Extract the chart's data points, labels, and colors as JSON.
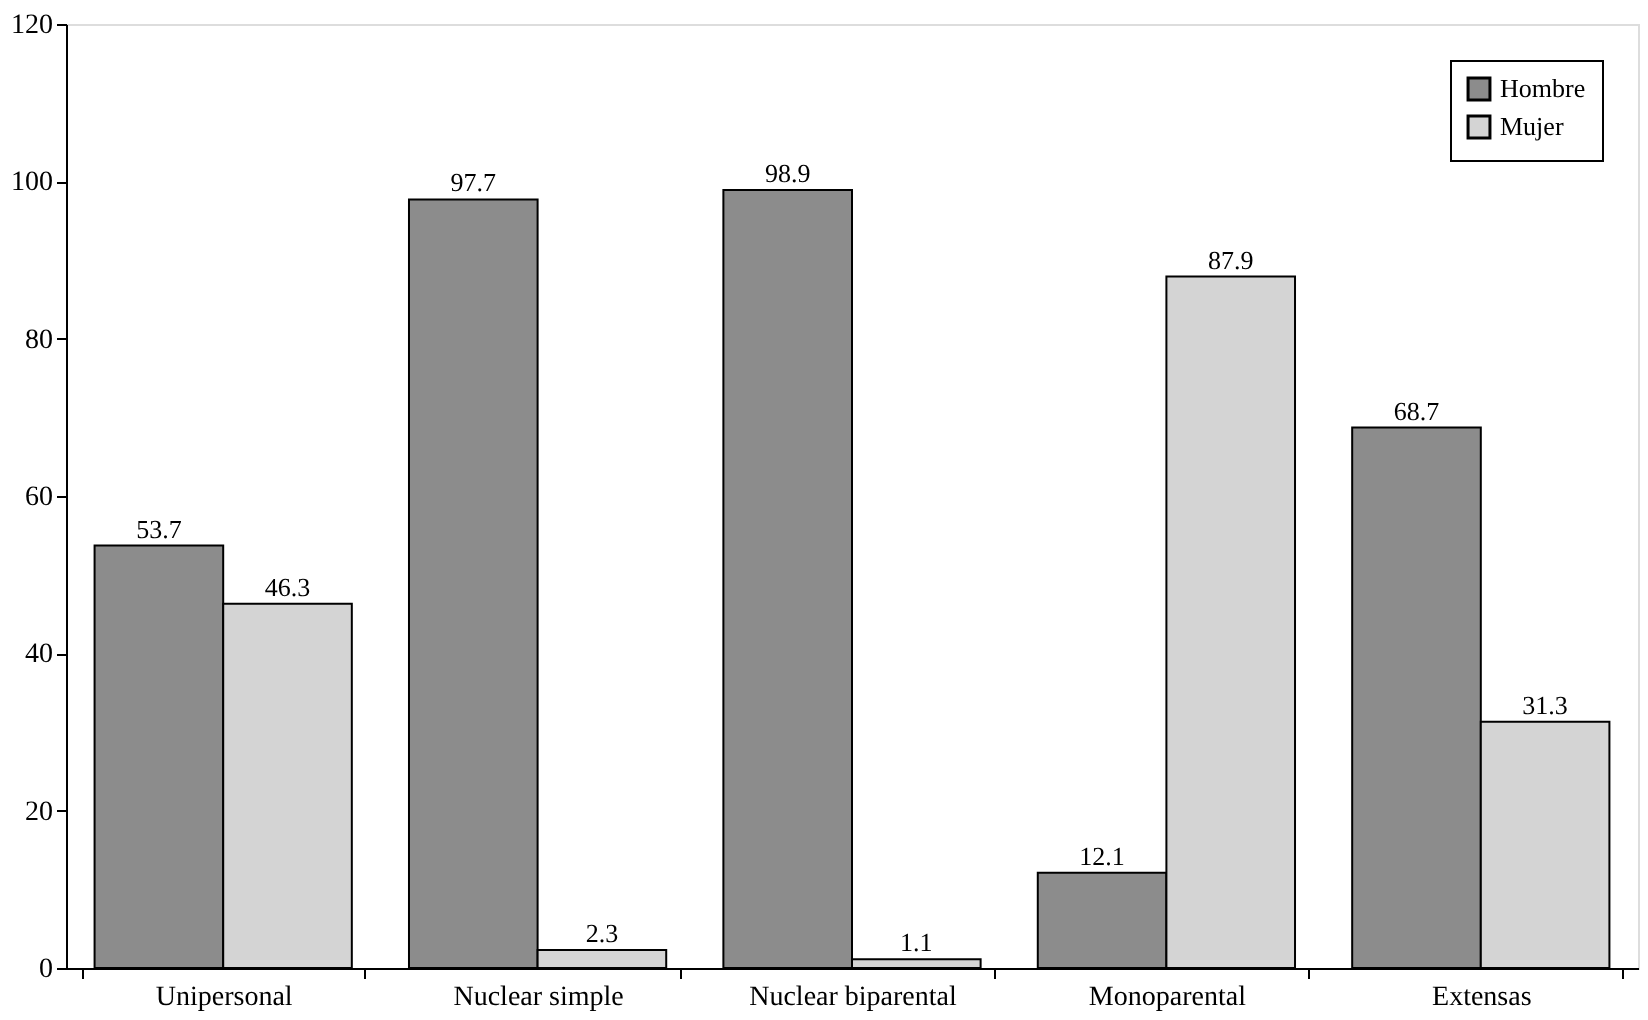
{
  "chart_data": {
    "type": "bar",
    "categories": [
      "Unipersonal",
      "Nuclear simple",
      "Nuclear biparental",
      "Monoparental",
      "Extensas"
    ],
    "series": [
      {
        "name": "Hombre",
        "color": "#8c8c8c",
        "values": [
          53.7,
          97.7,
          98.9,
          12.1,
          68.7
        ]
      },
      {
        "name": "Mujer",
        "color": "#d4d4d4",
        "values": [
          46.3,
          2.3,
          1.1,
          87.9,
          31.3
        ]
      }
    ],
    "ylim": [
      0,
      120
    ],
    "yticks": [
      0,
      20,
      40,
      60,
      80,
      100,
      120
    ],
    "grid": false,
    "legend": "top right",
    "data_labels": true
  }
}
